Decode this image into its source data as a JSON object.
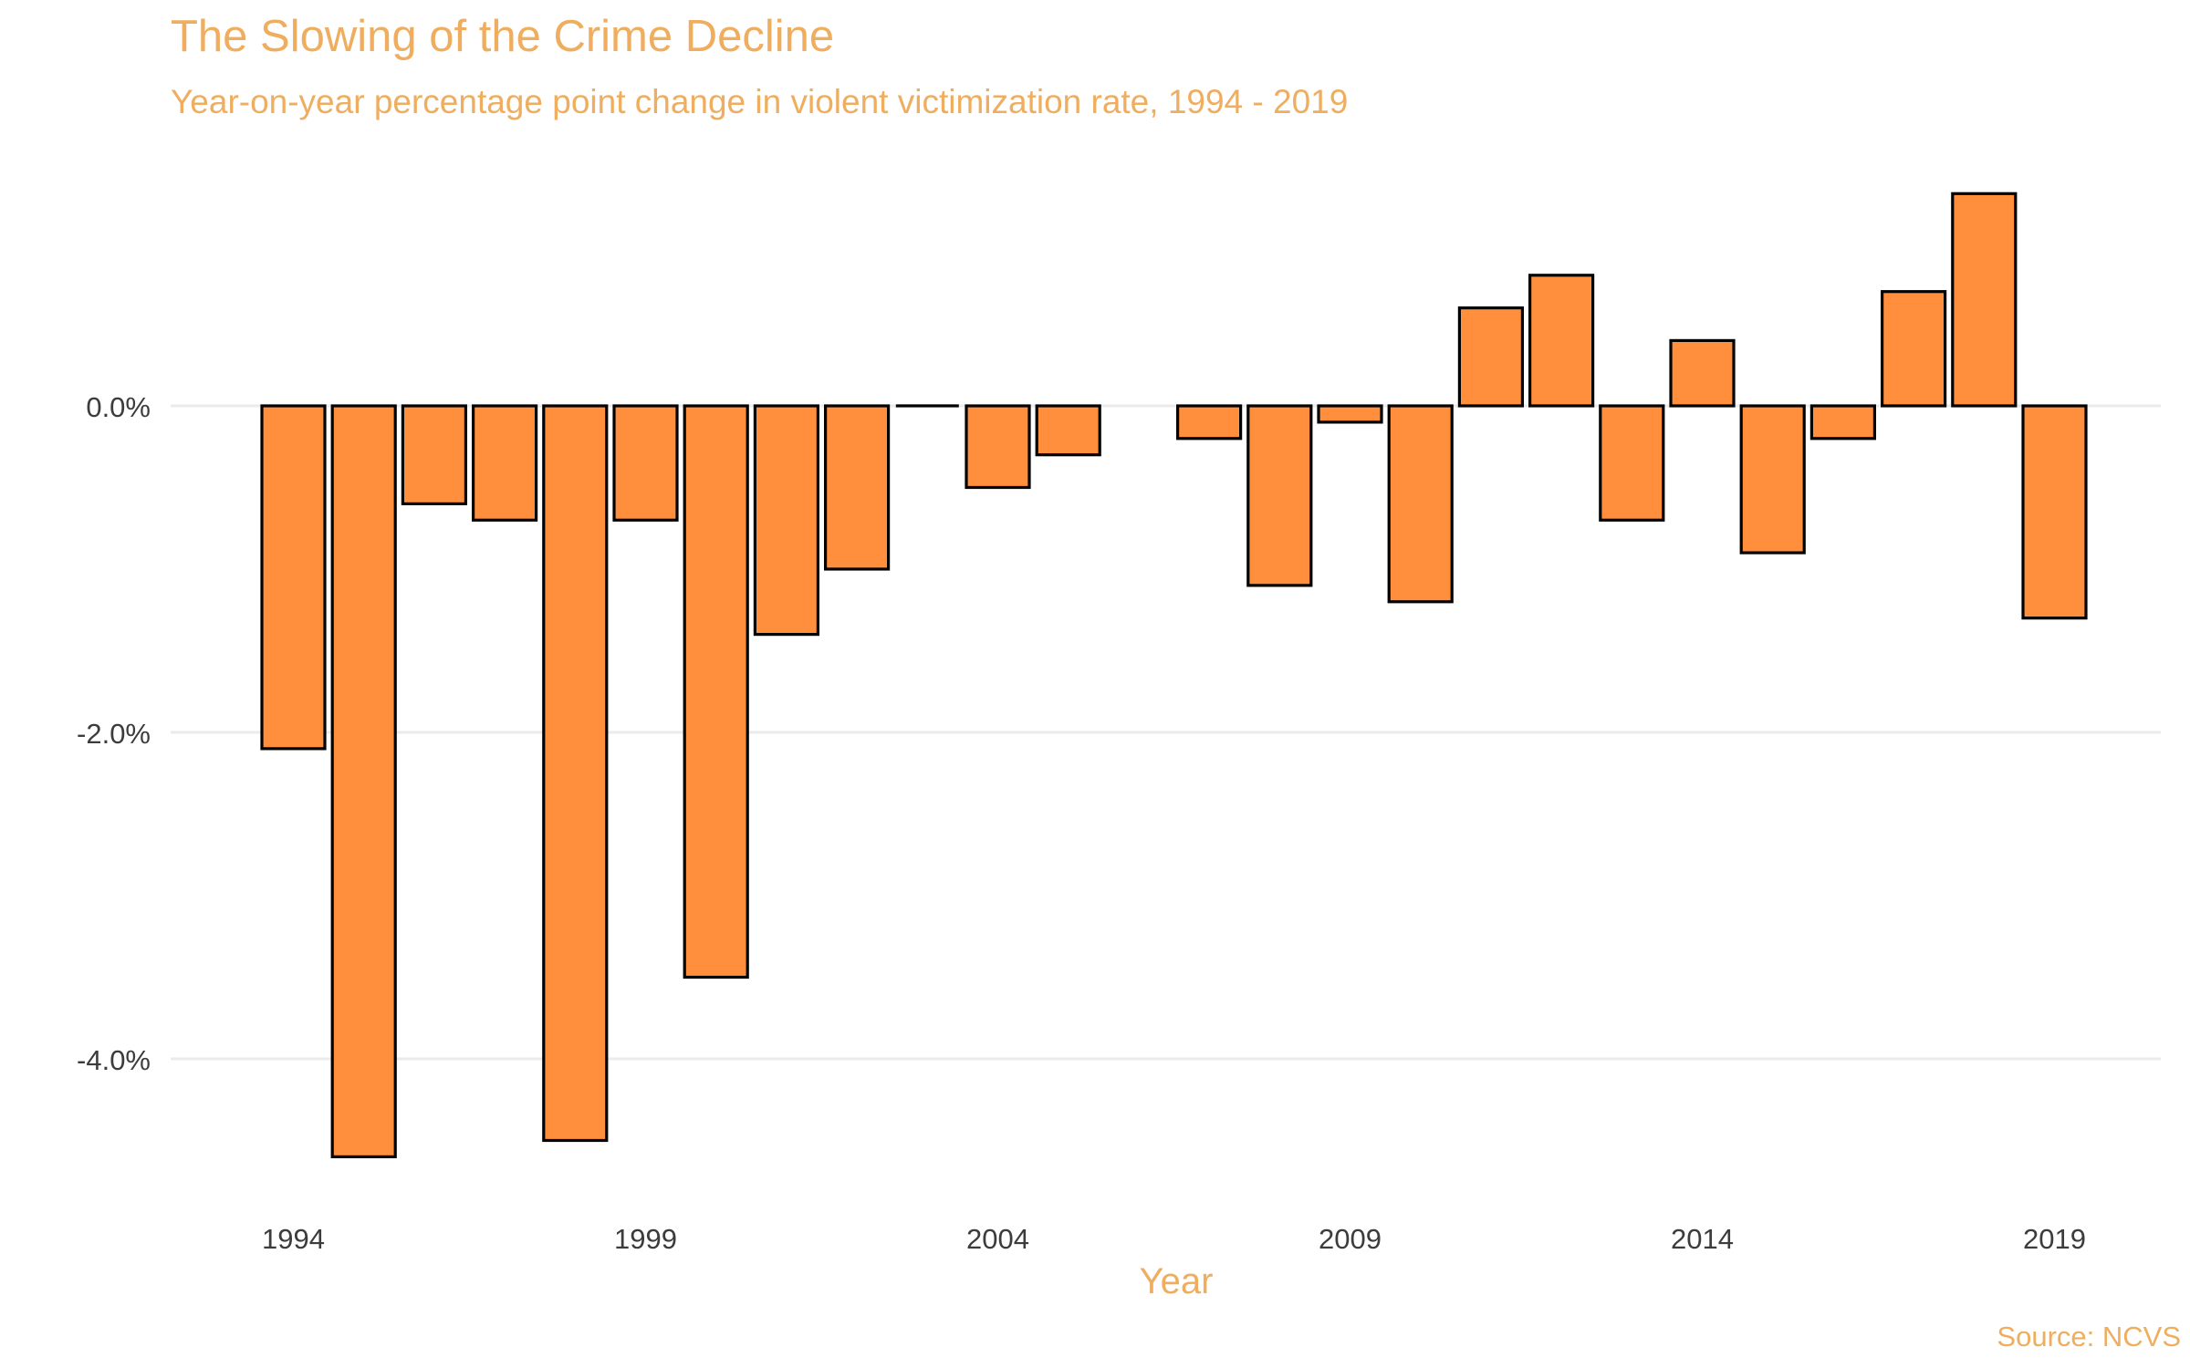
{
  "colors": {
    "title": "#EFAE5F",
    "bar_fill": "#FF8E3D",
    "bar_stroke": "#000000",
    "grid": "#EBEBEB",
    "tick_text": "#3C3C3C",
    "background": "#FFFFFF"
  },
  "chart_data": {
    "type": "bar",
    "title": "The Slowing of the Crime Decline",
    "subtitle": "Year-on-year percentage point change in violent victimization rate, 1994 - 2019",
    "xlabel": "Year",
    "ylabel": "",
    "caption": "Source: NCVS",
    "categories": [
      1994,
      1995,
      1996,
      1997,
      1998,
      1999,
      2000,
      2001,
      2002,
      2003,
      2004,
      2005,
      2006,
      2007,
      2008,
      2009,
      2010,
      2011,
      2012,
      2013,
      2014,
      2015,
      2016,
      2017,
      2018,
      2019
    ],
    "values": [
      -2.1,
      -4.6,
      -0.6,
      -0.7,
      -4.5,
      -0.7,
      -3.5,
      -1.4,
      -1.0,
      0.0,
      -0.5,
      -0.3,
      null,
      -0.2,
      -1.1,
      -0.1,
      -1.2,
      0.6,
      0.8,
      -0.7,
      0.4,
      -0.9,
      -0.2,
      0.7,
      1.3,
      -1.3
    ],
    "value_unit": "percent",
    "ylim": [
      -4.9,
      1.5
    ],
    "y_ticks": [
      0,
      -2,
      -4
    ],
    "y_tick_labels": [
      "0.0%",
      "-2.0%",
      "-4.0%"
    ],
    "x_ticks": [
      1994,
      1999,
      2004,
      2009,
      2014,
      2019
    ],
    "x_tick_labels": [
      "1994",
      "1999",
      "2004",
      "2009",
      "2014",
      "2019"
    ],
    "grid": true,
    "legend": "none"
  }
}
